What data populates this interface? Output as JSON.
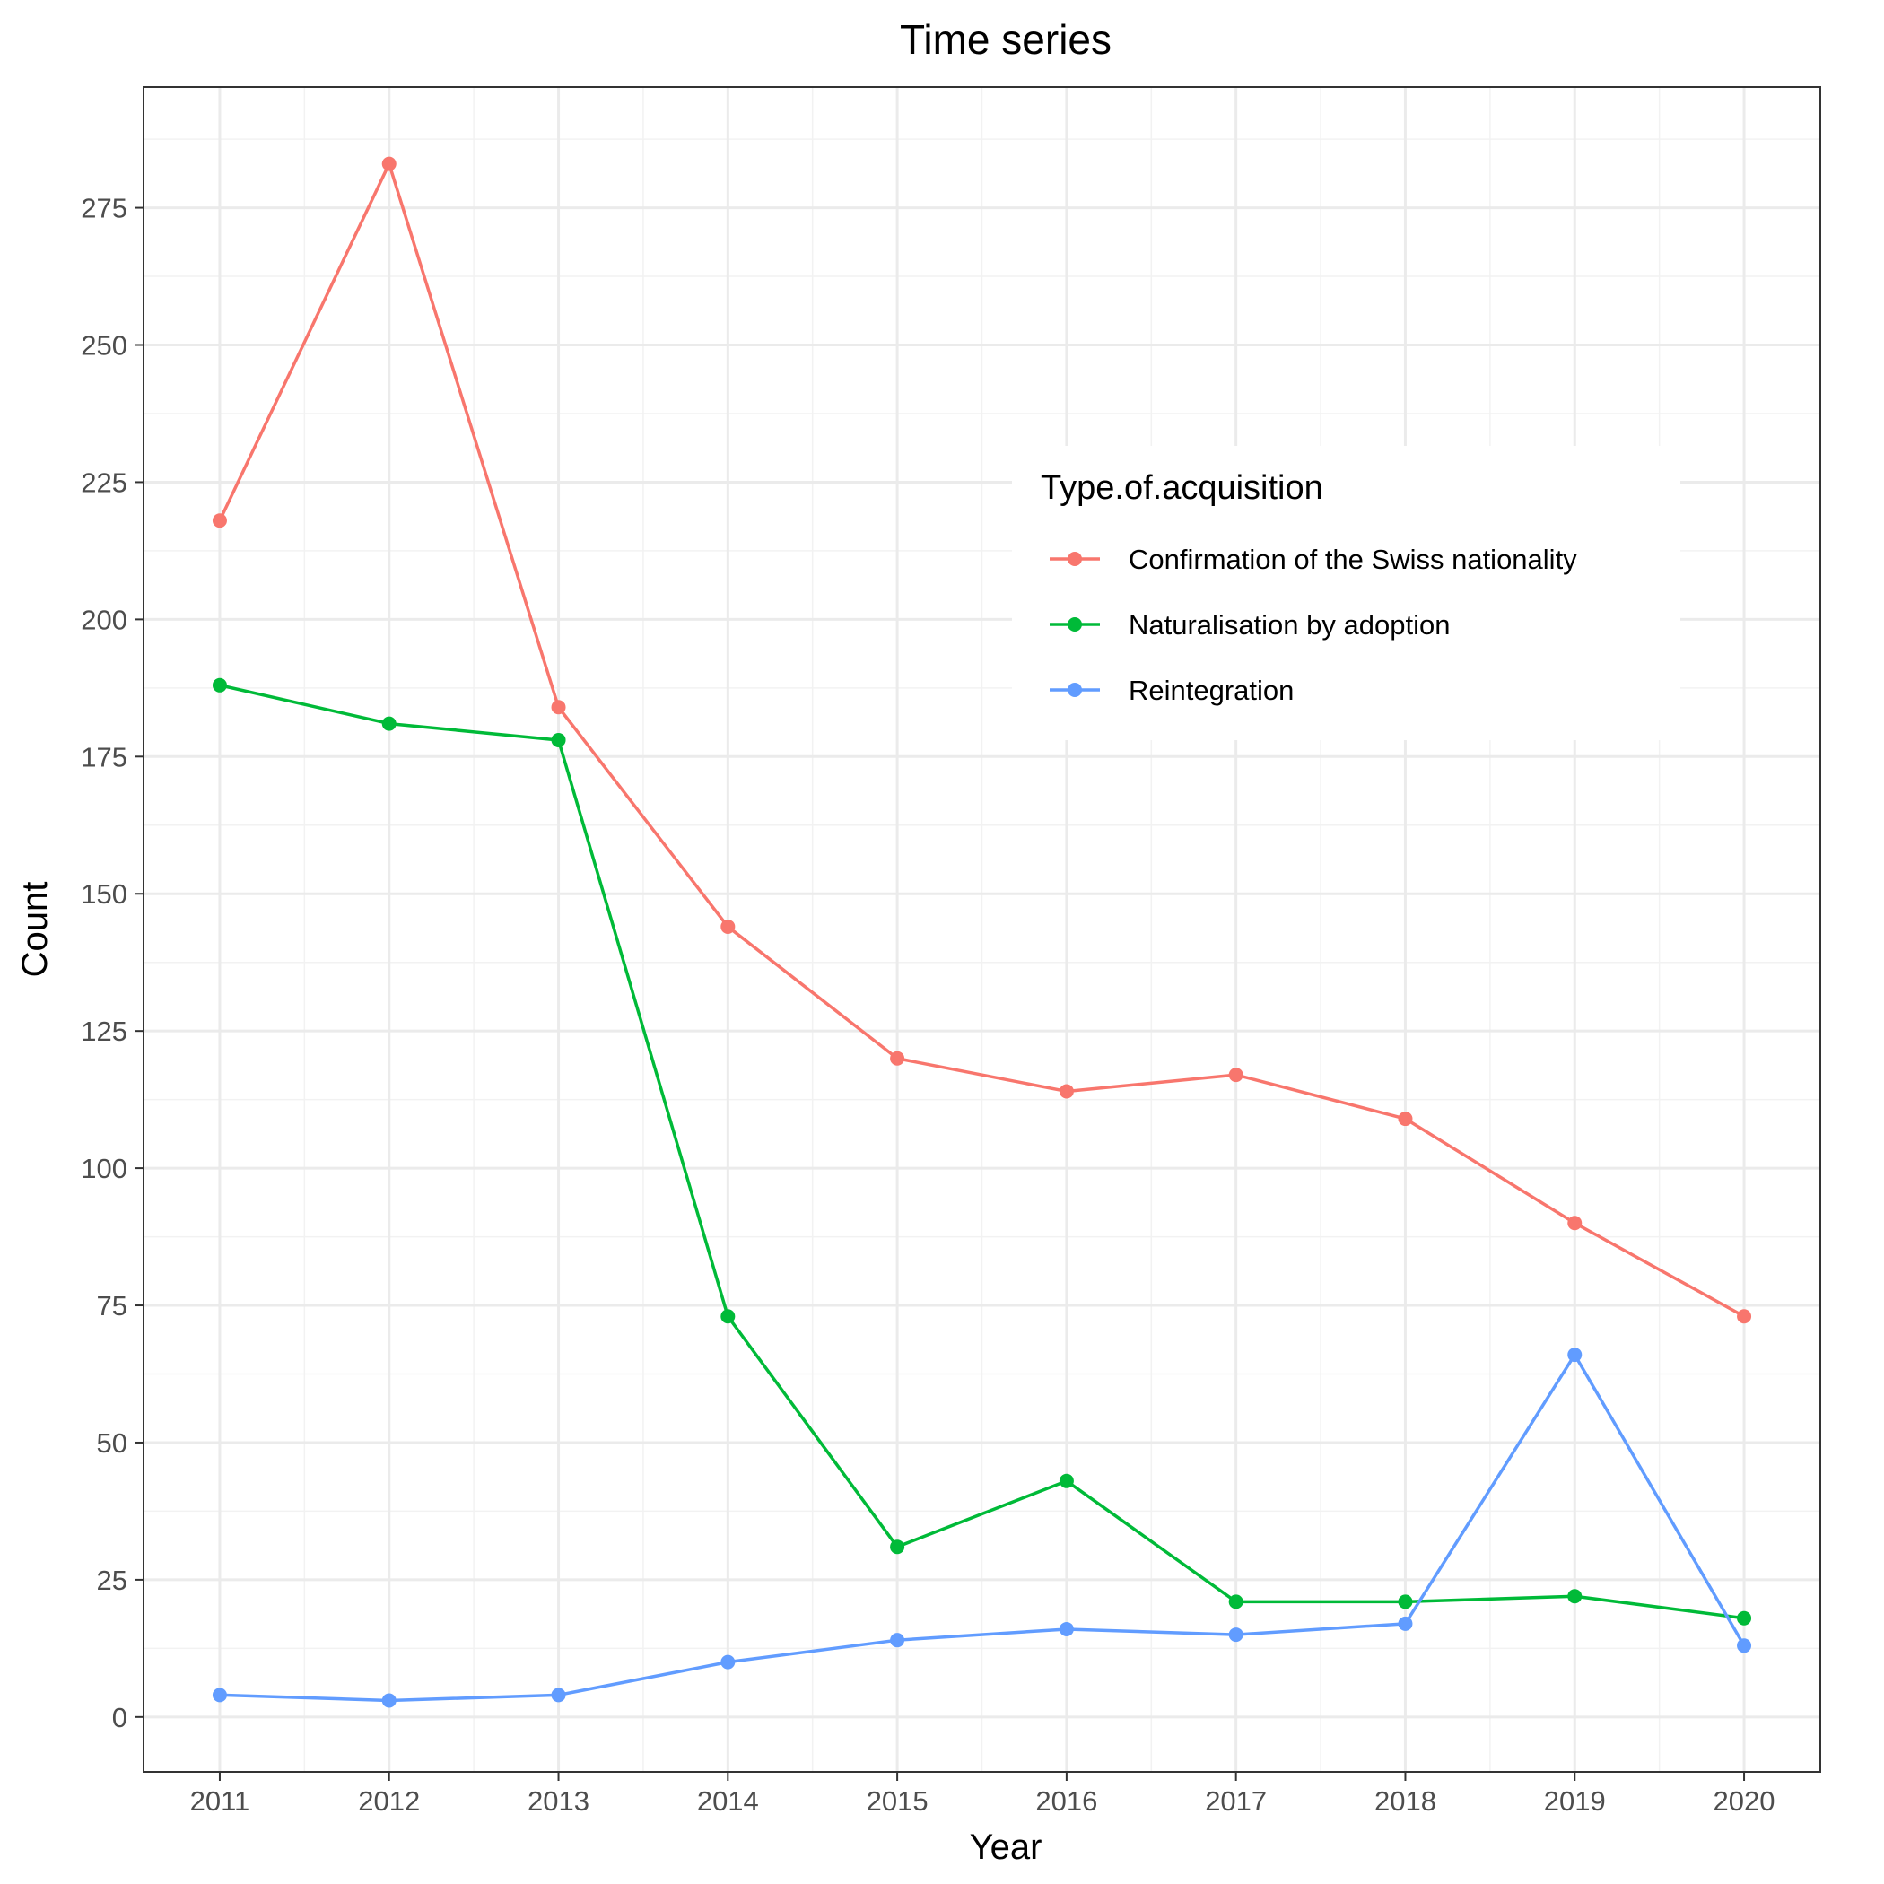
{
  "chart_data": {
    "type": "line",
    "title": "Time series",
    "xlabel": "Year",
    "ylabel": "Count",
    "x": [
      2011,
      2012,
      2013,
      2014,
      2015,
      2016,
      2017,
      2018,
      2019,
      2020
    ],
    "xlim": [
      2010.55,
      2020.45
    ],
    "ylim": [
      -10,
      297
    ],
    "yticks": [
      0,
      25,
      50,
      75,
      100,
      125,
      150,
      175,
      200,
      225,
      250,
      275
    ],
    "grid": true,
    "legend": {
      "title": "Type.of.acquisition",
      "placement": "top-right"
    },
    "series": [
      {
        "name": "Confirmation of the Swiss nationality",
        "color": "#F8766D",
        "values": [
          218,
          283,
          184,
          144,
          120,
          114,
          117,
          109,
          90,
          73
        ]
      },
      {
        "name": "Naturalisation by adoption",
        "color": "#00BA38",
        "values": [
          188,
          181,
          178,
          73,
          31,
          43,
          21,
          21,
          22,
          18
        ]
      },
      {
        "name": "Reintegration",
        "color": "#619CFF",
        "values": [
          4,
          3,
          4,
          10,
          14,
          16,
          15,
          17,
          66,
          13
        ]
      }
    ]
  }
}
